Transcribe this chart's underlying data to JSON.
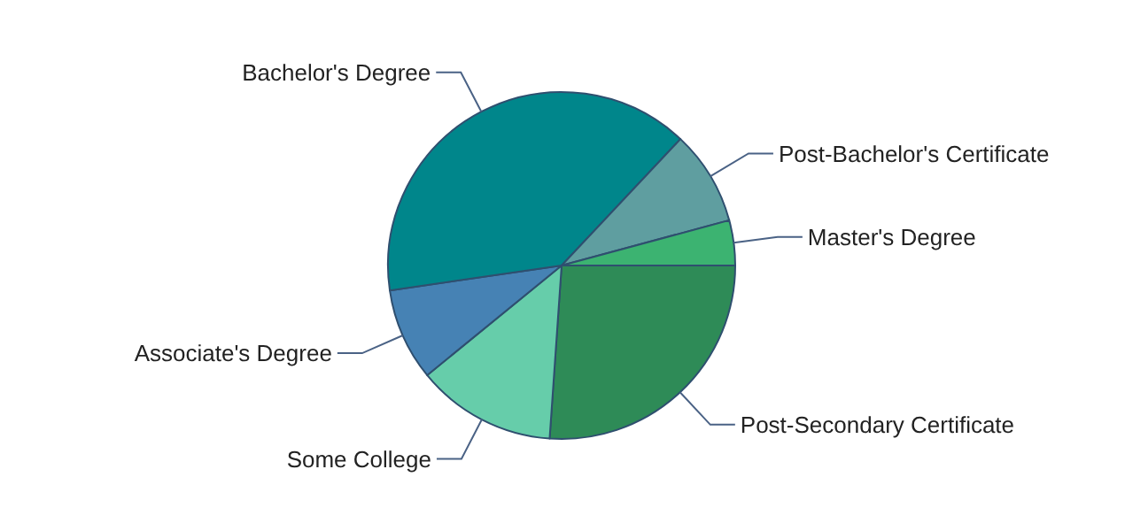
{
  "chart_data": {
    "type": "pie",
    "categories": [
      "Post-Secondary Certificate",
      "Some College",
      "Associate's Degree",
      "Bachelor's Degree",
      "Post-Bachelor's Certificate",
      "Master's Degree"
    ],
    "values": [
      26.1,
      13.0,
      8.6,
      39.3,
      8.8,
      4.2
    ],
    "colors": [
      "#2e8b57",
      "#66cdaa",
      "#4682b4",
      "#00868b",
      "#5f9ea0",
      "#3cb371"
    ]
  }
}
